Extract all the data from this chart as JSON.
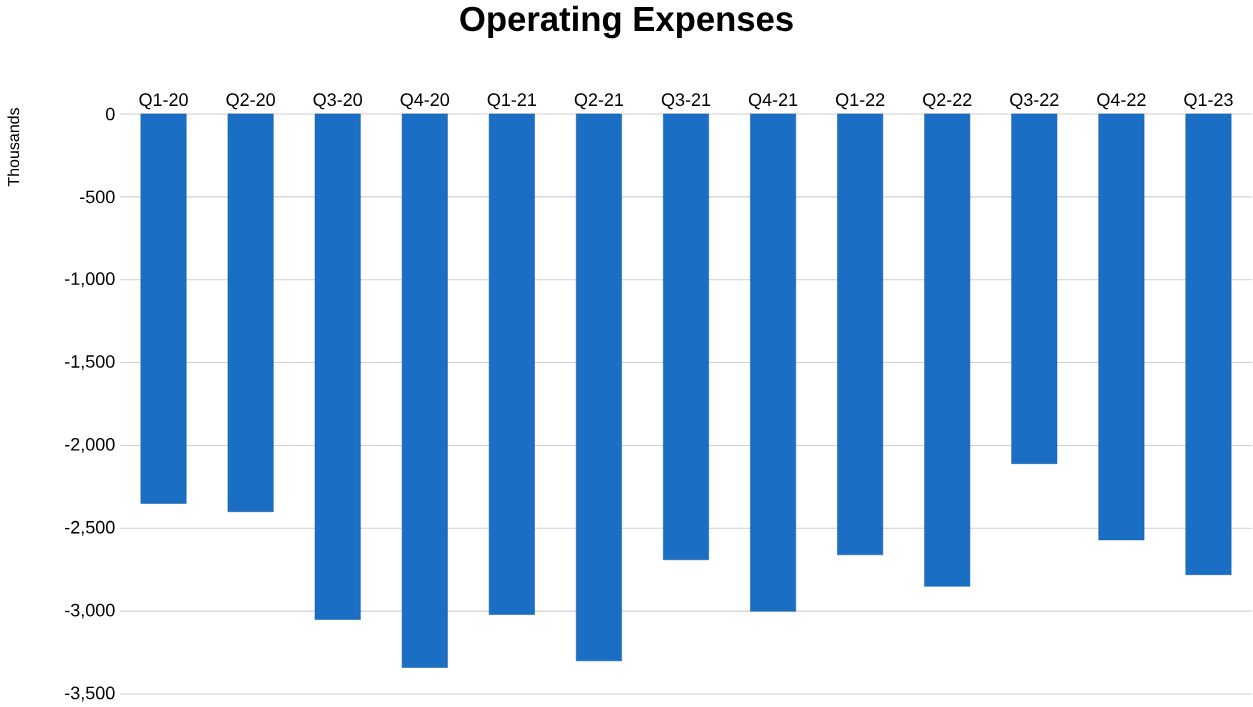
{
  "chart_data": {
    "type": "bar",
    "title": "Operating Expenses",
    "ylabel": "Thousands",
    "categories": [
      "Q1-20",
      "Q2-20",
      "Q3-20",
      "Q4-20",
      "Q1-21",
      "Q2-21",
      "Q3-21",
      "Q4-21",
      "Q1-22",
      "Q2-22",
      "Q3-22",
      "Q4-22",
      "Q1-23"
    ],
    "values": [
      -2350,
      -2400,
      -3050,
      -3340,
      -3020,
      -3300,
      -2690,
      -3000,
      -2660,
      -2850,
      -2110,
      -2570,
      -2780
    ],
    "color": "#1a6fc4",
    "ylim": [
      -3500,
      0
    ],
    "yticks": [
      0,
      -500,
      {
        "value": -1000,
        "label": "-1,000"
      },
      {
        "value": -1500,
        "label": "-1,500"
      },
      {
        "value": -2000,
        "label": "-2,000"
      },
      {
        "value": -2500,
        "label": "-2,500"
      },
      {
        "value": -3000,
        "label": "-3,000"
      },
      {
        "value": -3500,
        "label": "-3,500"
      }
    ],
    "grid": "y"
  }
}
